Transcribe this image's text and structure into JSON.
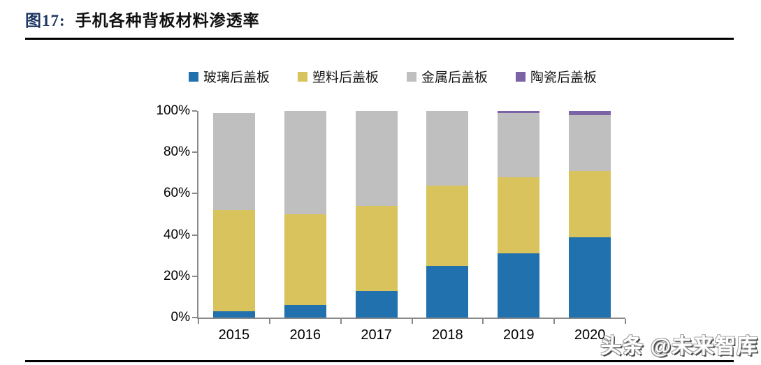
{
  "figure": {
    "label_prefix": "图17:",
    "title": "手机各种背板材料渗透率"
  },
  "watermark": {
    "text": "头条 @未来智库"
  },
  "chart_data": {
    "type": "bar",
    "stacked": true,
    "title": "手机各种背板材料渗透率",
    "xlabel": "",
    "ylabel": "",
    "categories": [
      "2015",
      "2016",
      "2017",
      "2018",
      "2019",
      "2020"
    ],
    "series": [
      {
        "name": "玻璃后盖板",
        "color": "#2171AE",
        "values": [
          3,
          6,
          13,
          25,
          31,
          39
        ]
      },
      {
        "name": "塑料后盖板",
        "color": "#D9C35C",
        "values": [
          49,
          44,
          41,
          39,
          37,
          32
        ]
      },
      {
        "name": "金属后盖板",
        "color": "#BFBFBF",
        "values": [
          47,
          50,
          46,
          36,
          31,
          27
        ]
      },
      {
        "name": "陶瓷后盖板",
        "color": "#7B63A5",
        "values": [
          0,
          0,
          0,
          0,
          1,
          2
        ]
      }
    ],
    "ylim": [
      0,
      100
    ],
    "y_ticks": [
      "0%",
      "20%",
      "40%",
      "60%",
      "80%",
      "100%"
    ],
    "legend_position": "top",
    "grid": false,
    "axis_color": "#898989"
  }
}
